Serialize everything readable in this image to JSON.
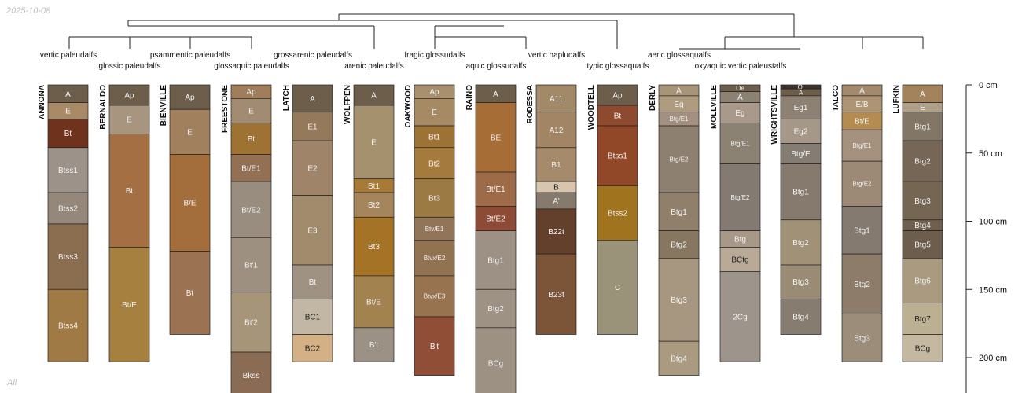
{
  "date_stamp": "2025-10-08",
  "corner_label": "All",
  "depth_unit": "cm",
  "depth_ticks": [
    {
      "depth": 0,
      "label": "0 cm"
    },
    {
      "depth": 50,
      "label": "50 cm"
    },
    {
      "depth": 100,
      "label": "100 cm"
    },
    {
      "depth": 150,
      "label": "150 cm"
    },
    {
      "depth": 200,
      "label": "200 cm"
    }
  ],
  "taxa": [
    {
      "label": "vertic paleudalfs",
      "row": 1
    },
    {
      "label": "glossic paleudalfs",
      "row": 2
    },
    {
      "label": "psammentic paleudalfs",
      "row": 1
    },
    {
      "label": "glossaquic paleudalfs",
      "row": 2
    },
    {
      "label": "grossarenic paleudalfs",
      "row": 1
    },
    {
      "label": "arenic paleudalfs",
      "row": 2
    },
    {
      "label": "fragic glossudalfs",
      "row": 1
    },
    {
      "label": "aquic glossudalfs",
      "row": 2
    },
    {
      "label": "vertic hapludalfs",
      "row": 1
    },
    {
      "label": "typic glossaqualfs",
      "row": 2
    },
    {
      "label": "aeric glossaqualfs",
      "row": 1
    },
    {
      "label": "oxyaquic vertic paleustalfs",
      "row": 2
    }
  ],
  "profiles": [
    {
      "name": "ANNONA",
      "horizons": [
        {
          "name": "A",
          "top": 0,
          "bottom": 13,
          "color": "#6d5d4b"
        },
        {
          "name": "E",
          "top": 13,
          "bottom": 25,
          "color": "#a88a67"
        },
        {
          "name": "Bt",
          "top": 25,
          "bottom": 46,
          "color": "#6e321d"
        },
        {
          "name": "Btss1",
          "top": 46,
          "bottom": 79,
          "color": "#9d9289"
        },
        {
          "name": "Btss2",
          "top": 79,
          "bottom": 102,
          "color": "#958779"
        },
        {
          "name": "Btss3",
          "top": 102,
          "bottom": 150,
          "color": "#8b6e4f"
        },
        {
          "name": "Btss4",
          "top": 150,
          "bottom": 203,
          "color": "#a07a45"
        }
      ]
    },
    {
      "name": "BERNALDO",
      "horizons": [
        {
          "name": "Ap",
          "top": 0,
          "bottom": 15,
          "color": "#6d5d4b"
        },
        {
          "name": "E",
          "top": 15,
          "bottom": 36,
          "color": "#a89580"
        },
        {
          "name": "Bt",
          "top": 36,
          "bottom": 119,
          "color": "#a46f42"
        },
        {
          "name": "Bt/E",
          "top": 119,
          "bottom": 203,
          "color": "#a6803f"
        }
      ]
    },
    {
      "name": "BIENVILLE",
      "horizons": [
        {
          "name": "Ap",
          "top": 0,
          "bottom": 18,
          "color": "#6d5d4b"
        },
        {
          "name": "E",
          "top": 18,
          "bottom": 51,
          "color": "#a1805e"
        },
        {
          "name": "B/E",
          "top": 51,
          "bottom": 122,
          "color": "#a46d3c"
        },
        {
          "name": "Bt",
          "top": 122,
          "bottom": 183,
          "color": "#9b7352"
        }
      ]
    },
    {
      "name": "FREESTONE",
      "horizons": [
        {
          "name": "Ap",
          "top": 0,
          "bottom": 10,
          "color": "#a07e5c"
        },
        {
          "name": "E",
          "top": 10,
          "bottom": 28,
          "color": "#a28c71"
        },
        {
          "name": "Bt",
          "top": 28,
          "bottom": 51,
          "color": "#9e7232"
        },
        {
          "name": "Bt/E1",
          "top": 51,
          "bottom": 71,
          "color": "#937053"
        },
        {
          "name": "Bt/E2",
          "top": 71,
          "bottom": 112,
          "color": "#998d80"
        },
        {
          "name": "Bt'1",
          "top": 112,
          "bottom": 152,
          "color": "#9e9080"
        },
        {
          "name": "Bt'2",
          "top": 152,
          "bottom": 196,
          "color": "#a69578"
        },
        {
          "name": "Bkss",
          "top": 196,
          "bottom": 230,
          "color": "#8a6c55"
        }
      ]
    },
    {
      "name": "LATCH",
      "horizons": [
        {
          "name": "A",
          "top": 0,
          "bottom": 20,
          "color": "#6d5d4b"
        },
        {
          "name": "E1",
          "top": 20,
          "bottom": 41,
          "color": "#95795b"
        },
        {
          "name": "E2",
          "top": 41,
          "bottom": 81,
          "color": "#a08469"
        },
        {
          "name": "E3",
          "top": 81,
          "bottom": 132,
          "color": "#a28a6c"
        },
        {
          "name": "Bt",
          "top": 132,
          "bottom": 157,
          "color": "#a09283"
        },
        {
          "name": "BC1",
          "top": 157,
          "bottom": 183,
          "color": "#c2b6a4"
        },
        {
          "name": "BC2",
          "top": 183,
          "bottom": 203,
          "color": "#d4b086"
        }
      ]
    },
    {
      "name": "WOLFPEN",
      "horizons": [
        {
          "name": "A",
          "top": 0,
          "bottom": 15,
          "color": "#6d5d4b"
        },
        {
          "name": "E",
          "top": 15,
          "bottom": 69,
          "color": "#a6916f"
        },
        {
          "name": "Bt1",
          "top": 69,
          "bottom": 79,
          "color": "#a77a36"
        },
        {
          "name": "Bt2",
          "top": 79,
          "bottom": 97,
          "color": "#a5865c"
        },
        {
          "name": "Bt3",
          "top": 97,
          "bottom": 140,
          "color": "#a47325"
        },
        {
          "name": "Bt/E",
          "top": 140,
          "bottom": 178,
          "color": "#a2834f"
        },
        {
          "name": "B't",
          "top": 178,
          "bottom": 203,
          "color": "#9b9185"
        }
      ]
    },
    {
      "name": "OAKWOOD",
      "horizons": [
        {
          "name": "Ap",
          "top": 0,
          "bottom": 10,
          "color": "#a88f6e"
        },
        {
          "name": "E",
          "top": 10,
          "bottom": 30,
          "color": "#a58a63"
        },
        {
          "name": "Bt1",
          "top": 30,
          "bottom": 46,
          "color": "#9d7235"
        },
        {
          "name": "Bt2",
          "top": 46,
          "bottom": 69,
          "color": "#a47b3d"
        },
        {
          "name": "Bt3",
          "top": 69,
          "bottom": 97,
          "color": "#9b7a44"
        },
        {
          "name": "Btv/E1",
          "top": 97,
          "bottom": 114,
          "color": "#927458"
        },
        {
          "name": "Btvx/E2",
          "top": 114,
          "bottom": 140,
          "color": "#927351"
        },
        {
          "name": "Btvx/E3",
          "top": 140,
          "bottom": 170,
          "color": "#97734f"
        },
        {
          "name": "B't",
          "top": 170,
          "bottom": 213,
          "color": "#904e36"
        }
      ]
    },
    {
      "name": "RAINO",
      "horizons": [
        {
          "name": "A",
          "top": 0,
          "bottom": 13,
          "color": "#6d5d4b"
        },
        {
          "name": "BE",
          "top": 13,
          "bottom": 64,
          "color": "#a66e36"
        },
        {
          "name": "Bt/E1",
          "top": 64,
          "bottom": 89,
          "color": "#9d6b48"
        },
        {
          "name": "Bt/E2",
          "top": 89,
          "bottom": 107,
          "color": "#8d4a34"
        },
        {
          "name": "Btg1",
          "top": 107,
          "bottom": 150,
          "color": "#9d9185"
        },
        {
          "name": "Btg2",
          "top": 150,
          "bottom": 178,
          "color": "#9e9284"
        },
        {
          "name": "BCg",
          "top": 178,
          "bottom": 230,
          "color": "#9d9184"
        }
      ]
    },
    {
      "name": "RODESSA",
      "horizons": [
        {
          "name": "A11",
          "top": 0,
          "bottom": 20,
          "color": "#a28968"
        },
        {
          "name": "A12",
          "top": 20,
          "bottom": 46,
          "color": "#a28565"
        },
        {
          "name": "B1",
          "top": 46,
          "bottom": 71,
          "color": "#a58b6b"
        },
        {
          "name": "B",
          "top": 71,
          "bottom": 79,
          "color": "#d7c6ad"
        },
        {
          "name": "A'",
          "top": 79,
          "bottom": 91,
          "color": "#867a6c"
        },
        {
          "name": "B22t",
          "top": 91,
          "bottom": 124,
          "color": "#63402c"
        },
        {
          "name": "B23t",
          "top": 124,
          "bottom": 183,
          "color": "#7c5539"
        }
      ]
    },
    {
      "name": "WOODTELL",
      "horizons": [
        {
          "name": "Ap",
          "top": 0,
          "bottom": 15,
          "color": "#6d5d4b"
        },
        {
          "name": "Bt",
          "top": 15,
          "bottom": 30,
          "color": "#8e4a2e"
        },
        {
          "name": "Btss1",
          "top": 30,
          "bottom": 74,
          "color": "#904829"
        },
        {
          "name": "Btss2",
          "top": 74,
          "bottom": 114,
          "color": "#a0741f"
        },
        {
          "name": "C",
          "top": 114,
          "bottom": 183,
          "color": "#9a937a"
        }
      ]
    },
    {
      "name": "DERLY",
      "horizons": [
        {
          "name": "A",
          "top": 0,
          "bottom": 8,
          "color": "#a79479"
        },
        {
          "name": "Eg",
          "top": 8,
          "bottom": 20,
          "color": "#ae9b80"
        },
        {
          "name": "Btg/E1",
          "top": 20,
          "bottom": 30,
          "color": "#a49080"
        },
        {
          "name": "Btg/E2",
          "top": 30,
          "bottom": 79,
          "color": "#8e8070"
        },
        {
          "name": "Btg1",
          "top": 79,
          "bottom": 107,
          "color": "#8f7f6b"
        },
        {
          "name": "Btg2",
          "top": 107,
          "bottom": 127,
          "color": "#877760"
        },
        {
          "name": "Btg3",
          "top": 127,
          "bottom": 188,
          "color": "#a89780"
        },
        {
          "name": "Btg4",
          "top": 188,
          "bottom": 213,
          "color": "#aa9a7f"
        }
      ]
    },
    {
      "name": "MOLLVILLE",
      "horizons": [
        {
          "name": "Oe",
          "top": 0,
          "bottom": 5,
          "color": "#6d5d4b"
        },
        {
          "name": "A",
          "top": 5,
          "bottom": 13,
          "color": "#8b8273"
        },
        {
          "name": "Eg",
          "top": 13,
          "bottom": 28,
          "color": "#a8998a"
        },
        {
          "name": "Btg/E1",
          "top": 28,
          "bottom": 58,
          "color": "#8c8274"
        },
        {
          "name": "Btg/E2",
          "top": 58,
          "bottom": 107,
          "color": "#837b72"
        },
        {
          "name": "Btg",
          "top": 107,
          "bottom": 119,
          "color": "#a89888"
        },
        {
          "name": "BCtg",
          "top": 119,
          "bottom": 137,
          "color": "#b9aa98"
        },
        {
          "name": "2Cg",
          "top": 137,
          "bottom": 203,
          "color": "#9d948b"
        }
      ]
    },
    {
      "name": "WRIGHTSVILLE",
      "horizons": [
        {
          "name": "Oi",
          "top": 0,
          "bottom": 3,
          "color": "#3c3229"
        },
        {
          "name": "A",
          "top": 3,
          "bottom": 8,
          "color": "#6d5d4b"
        },
        {
          "name": "Eg1",
          "top": 8,
          "bottom": 25,
          "color": "#8c8173"
        },
        {
          "name": "Eg2",
          "top": 25,
          "bottom": 43,
          "color": "#a59889"
        },
        {
          "name": "Btg/E",
          "top": 43,
          "bottom": 58,
          "color": "#857d74"
        },
        {
          "name": "Btg1",
          "top": 58,
          "bottom": 99,
          "color": "#857a6d"
        },
        {
          "name": "Btg2",
          "top": 99,
          "bottom": 132,
          "color": "#a19277"
        },
        {
          "name": "Btg3",
          "top": 132,
          "bottom": 157,
          "color": "#998b74"
        },
        {
          "name": "Btg4",
          "top": 157,
          "bottom": 183,
          "color": "#877c70"
        }
      ]
    },
    {
      "name": "TALCO",
      "horizons": [
        {
          "name": "A",
          "top": 0,
          "bottom": 8,
          "color": "#a18a6e"
        },
        {
          "name": "E/B",
          "top": 8,
          "bottom": 20,
          "color": "#ac9475"
        },
        {
          "name": "Bt/E",
          "top": 20,
          "bottom": 33,
          "color": "#b48c52"
        },
        {
          "name": "Btg/E1",
          "top": 33,
          "bottom": 56,
          "color": "#a4927f"
        },
        {
          "name": "Btg/E2",
          "top": 56,
          "bottom": 89,
          "color": "#9d8a76"
        },
        {
          "name": "Btg1",
          "top": 89,
          "bottom": 124,
          "color": "#847a6f"
        },
        {
          "name": "Btg2",
          "top": 124,
          "bottom": 168,
          "color": "#8d7c69"
        },
        {
          "name": "Btg3",
          "top": 168,
          "bottom": 203,
          "color": "#9c8c7a"
        }
      ]
    },
    {
      "name": "LUFKIN",
      "horizons": [
        {
          "name": "A",
          "top": 0,
          "bottom": 13,
          "color": "#a3835c"
        },
        {
          "name": "E",
          "top": 13,
          "bottom": 20,
          "color": "#b0a08a"
        },
        {
          "name": "Btg1",
          "top": 20,
          "bottom": 41,
          "color": "#827767"
        },
        {
          "name": "Btg2",
          "top": 41,
          "bottom": 71,
          "color": "#756656"
        },
        {
          "name": "Btg3",
          "top": 71,
          "bottom": 99,
          "color": "#756553"
        },
        {
          "name": "Btg4",
          "top": 99,
          "bottom": 107,
          "color": "#6e5f4e"
        },
        {
          "name": "Btg5",
          "top": 107,
          "bottom": 127,
          "color": "#6c5d4c"
        },
        {
          "name": "Btg6",
          "top": 127,
          "bottom": 160,
          "color": "#a99a80"
        },
        {
          "name": "Btg7",
          "top": 160,
          "bottom": 183,
          "color": "#bcb092"
        },
        {
          "name": "BCg",
          "top": 183,
          "bottom": 203,
          "color": "#c5b8a1"
        }
      ]
    }
  ],
  "dark_text_colors": [
    "#c2b6a4",
    "#d4b086",
    "#d7c6ad",
    "#b9aa98",
    "#bcb092",
    "#c5b8a1"
  ]
}
